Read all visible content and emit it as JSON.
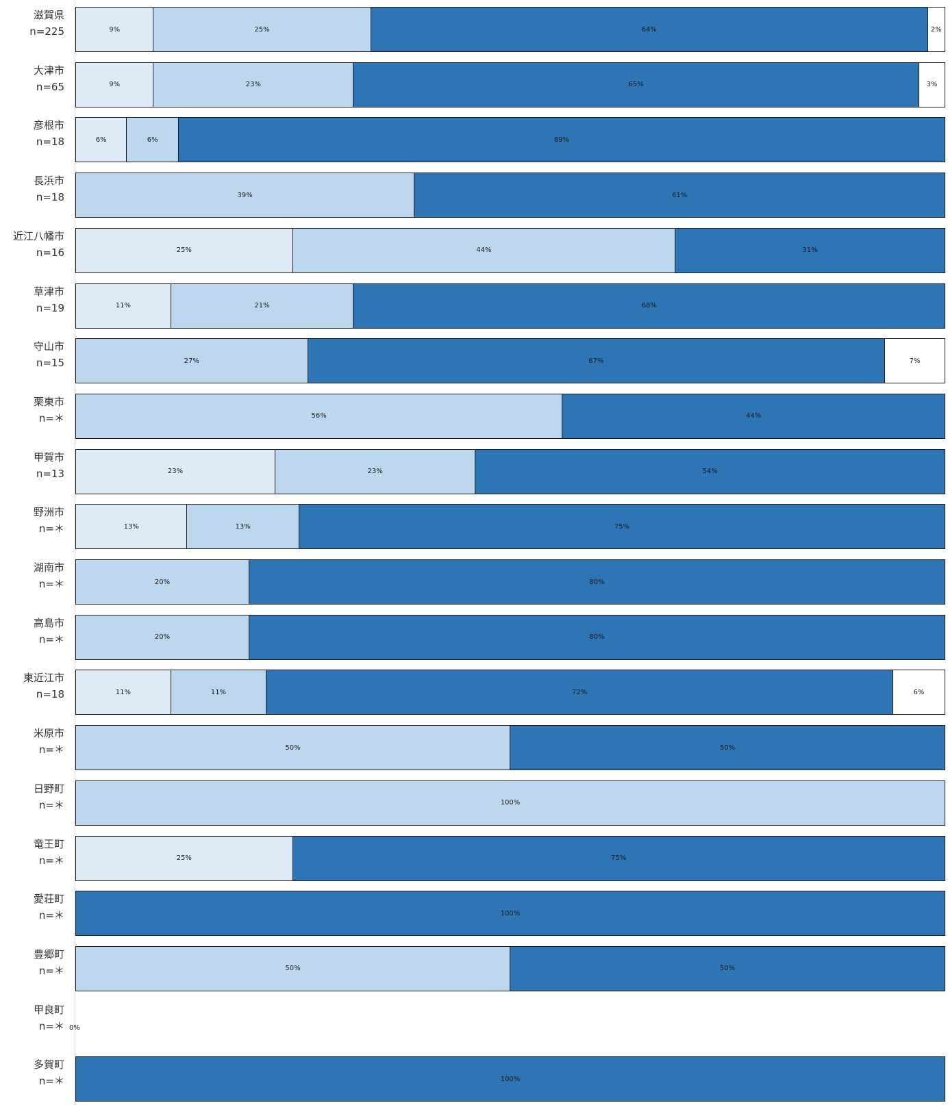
{
  "chart_data": {
    "type": "bar",
    "orientation": "horizontal-stacked-100",
    "xlim": [
      0,
      100
    ],
    "colors": [
      "#deebf7",
      "#bdd7ee",
      "#2e75b6",
      "#ffffff"
    ],
    "rows": [
      {
        "name": "滋賀県",
        "n": "n=225",
        "values": [
          9,
          25,
          64,
          2
        ],
        "labels": [
          "9%",
          "25%",
          "64%",
          "2%"
        ]
      },
      {
        "name": "大津市",
        "n": "n=65",
        "values": [
          9,
          23,
          65,
          3
        ],
        "labels": [
          "9%",
          "23%",
          "65%",
          "3%"
        ]
      },
      {
        "name": "彦根市",
        "n": "n=18",
        "values": [
          6,
          6,
          89,
          0
        ],
        "labels": [
          "6%",
          "6%",
          "89%",
          ""
        ]
      },
      {
        "name": "長浜市",
        "n": "n=18",
        "values": [
          0,
          39,
          61,
          0
        ],
        "labels": [
          "",
          "39%",
          "61%",
          ""
        ]
      },
      {
        "name": "近江八幡市",
        "n": "n=16",
        "values": [
          25,
          44,
          31,
          0
        ],
        "labels": [
          "25%",
          "44%",
          "31%",
          ""
        ]
      },
      {
        "name": "草津市",
        "n": "n=19",
        "values": [
          11,
          21,
          68,
          0
        ],
        "labels": [
          "11%",
          "21%",
          "68%",
          ""
        ]
      },
      {
        "name": "守山市",
        "n": "n=15",
        "values": [
          0,
          27,
          67,
          7
        ],
        "labels": [
          "",
          "27%",
          "67%",
          "7%"
        ]
      },
      {
        "name": "栗東市",
        "n": "n=＊",
        "values": [
          0,
          56,
          44,
          0
        ],
        "labels": [
          "",
          "56%",
          "44%",
          ""
        ]
      },
      {
        "name": "甲賀市",
        "n": "n=13",
        "values": [
          23,
          23,
          54,
          0
        ],
        "labels": [
          "23%",
          "23%",
          "54%",
          ""
        ]
      },
      {
        "name": "野洲市",
        "n": "n=＊",
        "values": [
          13,
          13,
          75,
          0
        ],
        "labels": [
          "13%",
          "13%",
          "75%",
          ""
        ]
      },
      {
        "name": "湖南市",
        "n": "n=＊",
        "values": [
          0,
          20,
          80,
          0
        ],
        "labels": [
          "",
          "20%",
          "80%",
          ""
        ]
      },
      {
        "name": "高島市",
        "n": "n=＊",
        "values": [
          0,
          20,
          80,
          0
        ],
        "labels": [
          "",
          "20%",
          "80%",
          ""
        ]
      },
      {
        "name": "東近江市",
        "n": "n=18",
        "values": [
          11,
          11,
          72,
          6
        ],
        "labels": [
          "11%",
          "11%",
          "72%",
          "6%"
        ]
      },
      {
        "name": "米原市",
        "n": "n=＊",
        "values": [
          0,
          50,
          50,
          0
        ],
        "labels": [
          "",
          "50%",
          "50%",
          ""
        ]
      },
      {
        "name": "日野町",
        "n": "n=＊",
        "values": [
          0,
          100,
          0,
          0
        ],
        "labels": [
          "",
          "100%",
          "",
          ""
        ]
      },
      {
        "name": "竜王町",
        "n": "n=＊",
        "values": [
          25,
          0,
          75,
          0
        ],
        "labels": [
          "25%",
          "",
          "75%",
          ""
        ]
      },
      {
        "name": "愛荘町",
        "n": "n=＊",
        "values": [
          0,
          0,
          100,
          0
        ],
        "labels": [
          "",
          "",
          "100%",
          ""
        ]
      },
      {
        "name": "豊郷町",
        "n": "n=＊",
        "values": [
          0,
          50,
          50,
          0
        ],
        "labels": [
          "",
          "50%",
          "50%",
          ""
        ]
      },
      {
        "name": "甲良町",
        "n": "n=＊",
        "values": [
          0,
          0,
          0,
          0
        ],
        "labels": [
          "",
          "",
          "",
          ""
        ],
        "zero_label": "0%"
      },
      {
        "name": "多賀町",
        "n": "n=＊",
        "values": [
          0,
          0,
          100,
          0
        ],
        "labels": [
          "",
          "",
          "100%",
          ""
        ]
      }
    ]
  }
}
